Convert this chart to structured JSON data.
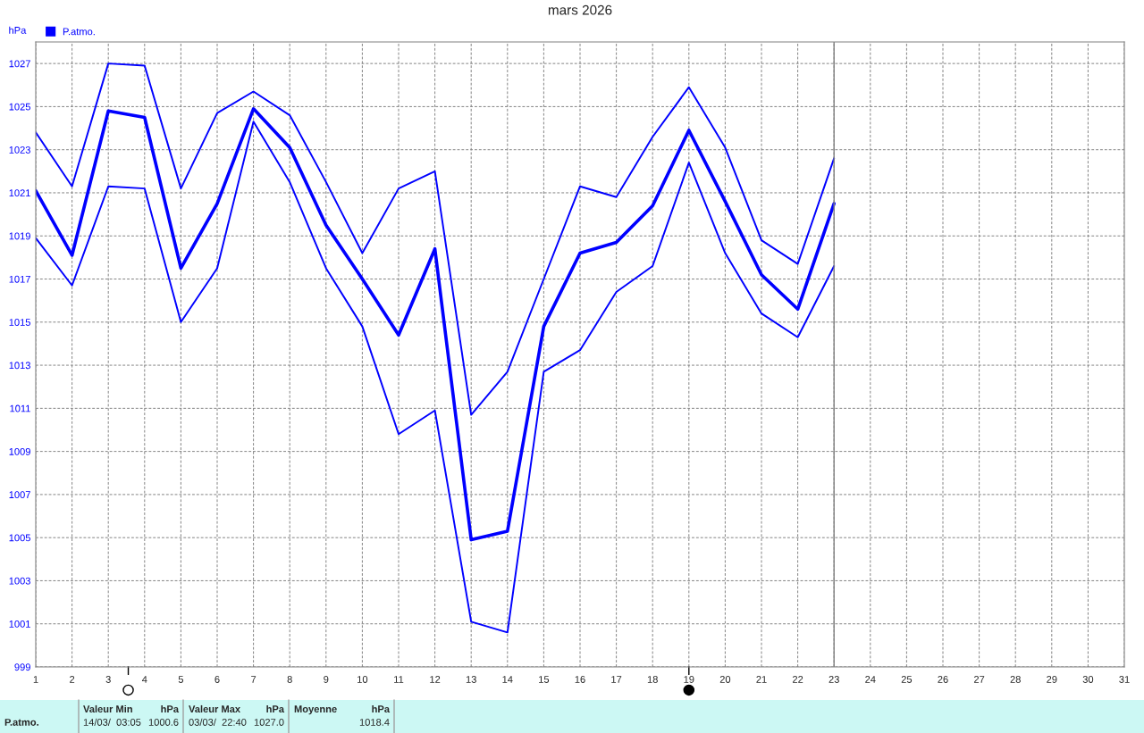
{
  "chart_data": {
    "type": "line",
    "title": "mars 2026",
    "ylabel": "hPa",
    "x": [
      1,
      2,
      3,
      4,
      5,
      6,
      7,
      8,
      9,
      10,
      11,
      12,
      13,
      14,
      15,
      16,
      17,
      18,
      19,
      20,
      21,
      22,
      23
    ],
    "series": [
      {
        "color": "#0000ff",
        "values": [
          1023.8,
          1021.3,
          1027.0,
          1026.9,
          1021.2,
          1024.7,
          1025.7,
          1024.6,
          1021.5,
          1018.2,
          1021.2,
          1022.0,
          1010.7,
          1012.7,
          1017.0,
          1021.3,
          1020.8,
          1023.6,
          1025.9,
          1023.1,
          1018.8,
          1017.7,
          1022.6
        ]
      },
      {
        "name": "P.atmo.",
        "color": "#0000ff",
        "values": [
          1021.1,
          1018.1,
          1024.8,
          1024.5,
          1017.5,
          1020.5,
          1024.9,
          1023.1,
          1019.5,
          1017.0,
          1014.4,
          1018.4,
          1004.9,
          1005.3,
          1014.8,
          1018.2,
          1018.7,
          1020.4,
          1023.9,
          1020.6,
          1017.2,
          1015.6,
          1020.5
        ]
      },
      {
        "color": "#0000ff",
        "values": [
          1018.9,
          1016.7,
          1021.3,
          1021.2,
          1015.0,
          1017.5,
          1024.3,
          1021.5,
          1017.5,
          1014.8,
          1009.8,
          1010.9,
          1001.1,
          1000.6,
          1012.7,
          1013.7,
          1016.4,
          1017.6,
          1022.4,
          1018.2,
          1015.4,
          1014.3,
          1017.6
        ]
      }
    ],
    "xlim": [
      1,
      31
    ],
    "xticks": [
      1,
      2,
      3,
      4,
      5,
      6,
      7,
      8,
      9,
      10,
      11,
      12,
      13,
      14,
      15,
      16,
      17,
      18,
      19,
      20,
      21,
      22,
      23,
      24,
      25,
      26,
      27,
      28,
      29,
      30,
      31
    ],
    "ylim": [
      999,
      1028
    ],
    "yticks": [
      999,
      1001,
      1003,
      1005,
      1007,
      1009,
      1011,
      1013,
      1015,
      1017,
      1019,
      1021,
      1023,
      1025,
      1027
    ],
    "grid": true,
    "legend": "top left",
    "line_style": "solid",
    "marker": "none",
    "ref_lines": [
      {
        "axis": "x",
        "value": 23,
        "color": "#808080"
      }
    ],
    "annotations": [
      "P.atmo.",
      "Valeur Min",
      "hPa",
      "14/03/  03:05",
      "1000.6",
      "Valeur Max",
      "hPa",
      "03/03/  22:40",
      "1027.0",
      "Moyenne",
      "hPa",
      "1018.4"
    ]
  }
}
